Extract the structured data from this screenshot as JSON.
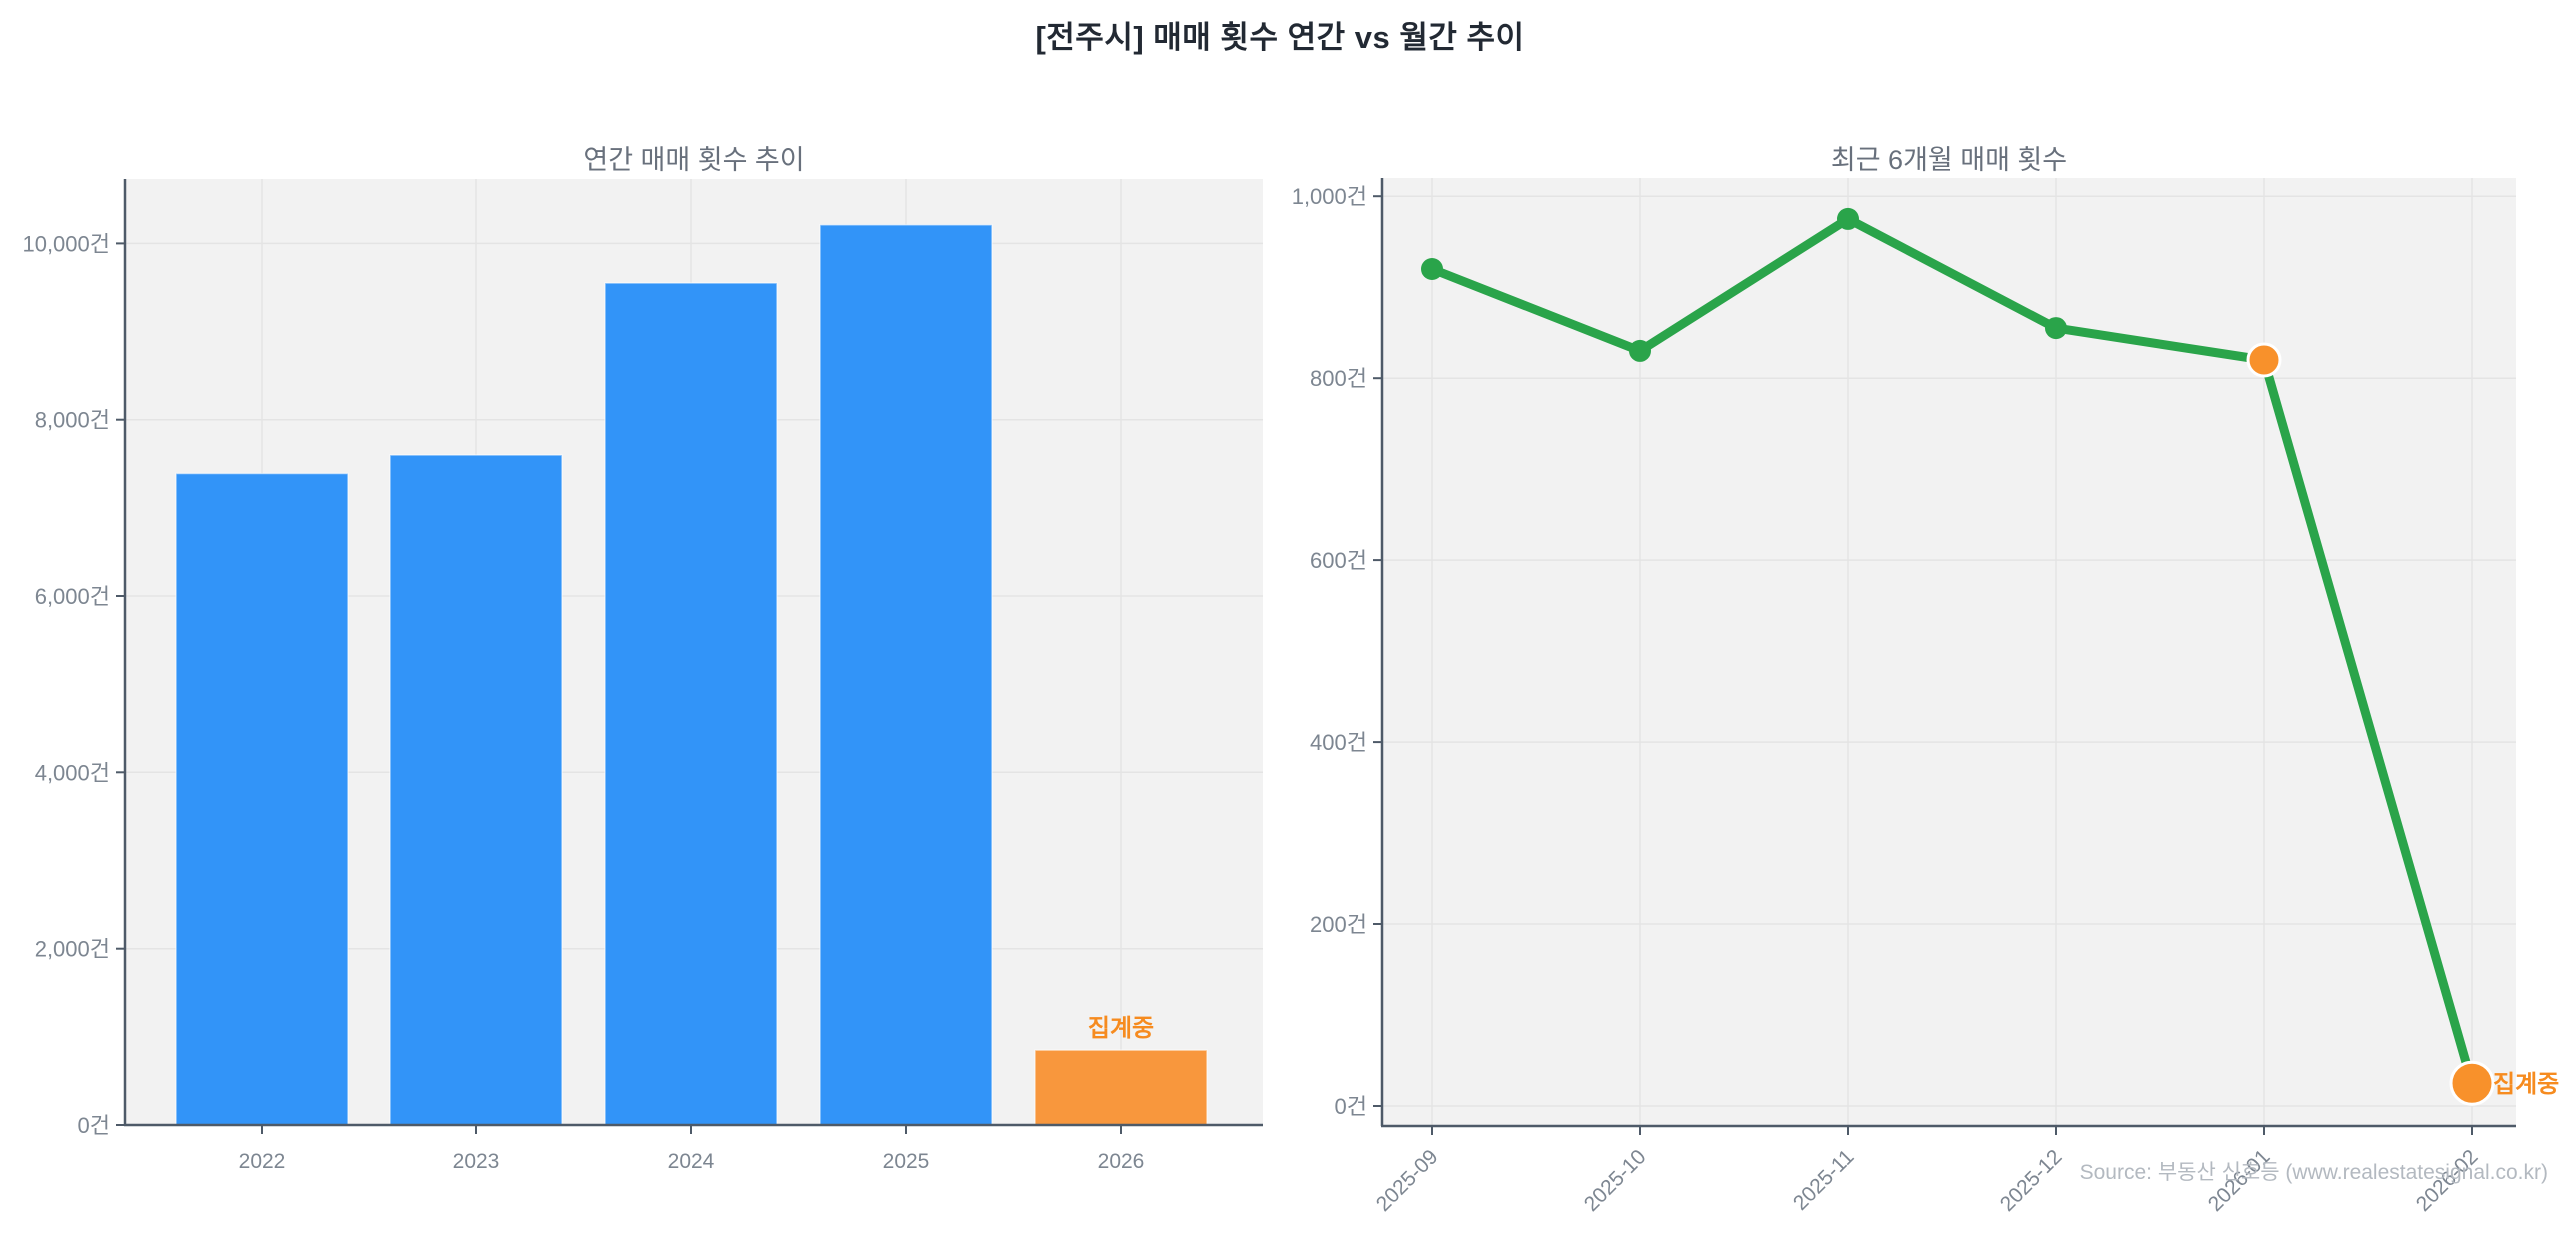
{
  "page_title": "[전주시] 매매 횟수 연간 vs 월간 추이",
  "source_note": "Source: 부동산 신호등 (www.realestatesignal.co.kr)",
  "colors": {
    "bar_blue": "#3294f8",
    "bar_orange": "#f8973d",
    "line_green": "#2aa44a",
    "marker_orange": "#f8912b",
    "annotation_orange": "#f68b1f",
    "plot_background": "#f2f2f2",
    "gridline": "#e4e4e4",
    "spine": "#4e5a68",
    "tick_label": "#7d8691",
    "title_text": "#222933",
    "subtitle_text": "#68707c",
    "source_text": "#b3b9c0"
  },
  "chart_data": [
    {
      "type": "bar",
      "title": "연간 매매 횟수 추이",
      "categories": [
        "2022",
        "2023",
        "2024",
        "2025",
        "2026"
      ],
      "values": [
        7390,
        7600,
        9550,
        10210,
        850
      ],
      "unit": "건",
      "ylim": [
        0,
        10730
      ],
      "grid": true,
      "y_ticks": {
        "values": [
          0,
          2000,
          4000,
          6000,
          8000,
          10000
        ],
        "labels": [
          "0건",
          "2,000건",
          "4,000건",
          "6,000건",
          "8,000건",
          "10,000건"
        ]
      },
      "highlight_indices": [
        4
      ],
      "annotation": {
        "text": "집계중",
        "target_index": 4
      }
    },
    {
      "type": "line",
      "title": "최근 6개월 매매 횟수",
      "categories": [
        "2025-09",
        "2025-10",
        "2025-11",
        "2025-12",
        "2026-01",
        "2026-02"
      ],
      "values": [
        920,
        830,
        975,
        855,
        820,
        25
      ],
      "unit": "건",
      "ylim": [
        -22,
        1020
      ],
      "grid": true,
      "x_tick_rotation": 45,
      "y_ticks": {
        "values": [
          0,
          200,
          400,
          600,
          800,
          1000
        ],
        "labels": [
          "0건",
          "200건",
          "400건",
          "600건",
          "800건",
          "1,000건"
        ]
      },
      "highlight_indices": [
        4,
        5
      ],
      "annotation": {
        "text": "집계중",
        "target_index": 5
      }
    }
  ]
}
